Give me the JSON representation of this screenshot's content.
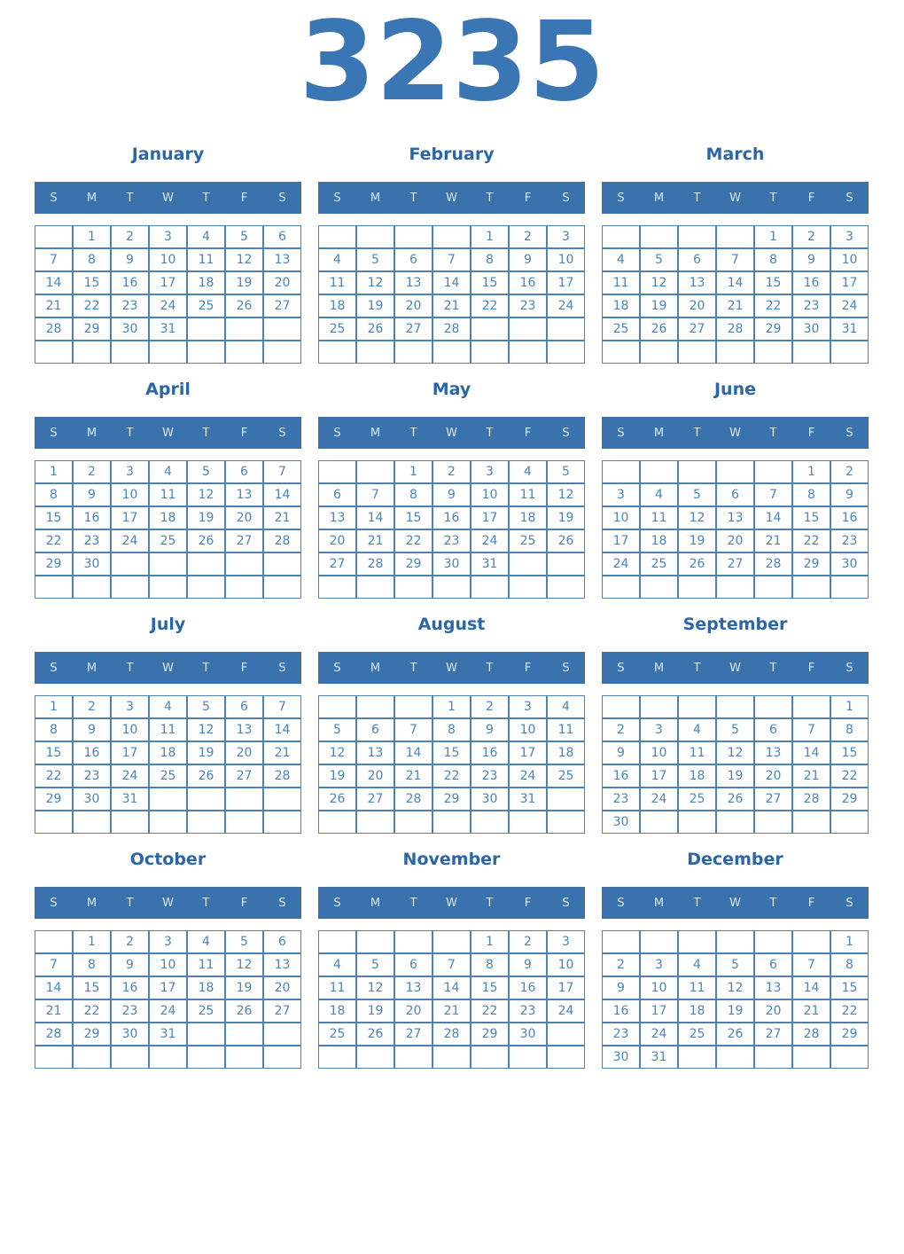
{
  "year": "3235",
  "weekday_headers": [
    "S",
    "M",
    "T",
    "W",
    "T",
    "F",
    "S"
  ],
  "colors": {
    "year_text": "#3b76b4",
    "month_title": "#2b67a8",
    "weekday_bar_bg": "#3a72ad",
    "weekday_bar_text": "#dfe9f4",
    "day_text": "#4d84b8",
    "cell_border": "#4d82b5",
    "background": "#ffffff"
  },
  "months": [
    {
      "name": "January",
      "weeks": [
        [
          "",
          "1",
          "2",
          "3",
          "4",
          "5",
          "6"
        ],
        [
          "7",
          "8",
          "9",
          "10",
          "11",
          "12",
          "13"
        ],
        [
          "14",
          "15",
          "16",
          "17",
          "18",
          "19",
          "20"
        ],
        [
          "21",
          "22",
          "23",
          "24",
          "25",
          "26",
          "27"
        ],
        [
          "28",
          "29",
          "30",
          "31",
          "",
          "",
          ""
        ],
        [
          "",
          "",
          "",
          "",
          "",
          "",
          ""
        ]
      ]
    },
    {
      "name": "February",
      "weeks": [
        [
          "",
          "",
          "",
          "",
          "1",
          "2",
          "3"
        ],
        [
          "4",
          "5",
          "6",
          "7",
          "8",
          "9",
          "10"
        ],
        [
          "11",
          "12",
          "13",
          "14",
          "15",
          "16",
          "17"
        ],
        [
          "18",
          "19",
          "20",
          "21",
          "22",
          "23",
          "24"
        ],
        [
          "25",
          "26",
          "27",
          "28",
          "",
          "",
          ""
        ],
        [
          "",
          "",
          "",
          "",
          "",
          "",
          ""
        ]
      ]
    },
    {
      "name": "March",
      "weeks": [
        [
          "",
          "",
          "",
          "",
          "1",
          "2",
          "3"
        ],
        [
          "4",
          "5",
          "6",
          "7",
          "8",
          "9",
          "10"
        ],
        [
          "11",
          "12",
          "13",
          "14",
          "15",
          "16",
          "17"
        ],
        [
          "18",
          "19",
          "20",
          "21",
          "22",
          "23",
          "24"
        ],
        [
          "25",
          "26",
          "27",
          "28",
          "29",
          "30",
          "31"
        ],
        [
          "",
          "",
          "",
          "",
          "",
          "",
          ""
        ]
      ]
    },
    {
      "name": "April",
      "weeks": [
        [
          "1",
          "2",
          "3",
          "4",
          "5",
          "6",
          "7"
        ],
        [
          "8",
          "9",
          "10",
          "11",
          "12",
          "13",
          "14"
        ],
        [
          "15",
          "16",
          "17",
          "18",
          "19",
          "20",
          "21"
        ],
        [
          "22",
          "23",
          "24",
          "25",
          "26",
          "27",
          "28"
        ],
        [
          "29",
          "30",
          "",
          "",
          "",
          "",
          ""
        ],
        [
          "",
          "",
          "",
          "",
          "",
          "",
          ""
        ]
      ]
    },
    {
      "name": "May",
      "weeks": [
        [
          "",
          "",
          "1",
          "2",
          "3",
          "4",
          "5"
        ],
        [
          "6",
          "7",
          "8",
          "9",
          "10",
          "11",
          "12"
        ],
        [
          "13",
          "14",
          "15",
          "16",
          "17",
          "18",
          "19"
        ],
        [
          "20",
          "21",
          "22",
          "23",
          "24",
          "25",
          "26"
        ],
        [
          "27",
          "28",
          "29",
          "30",
          "31",
          "",
          ""
        ],
        [
          "",
          "",
          "",
          "",
          "",
          "",
          ""
        ]
      ]
    },
    {
      "name": "June",
      "weeks": [
        [
          "",
          "",
          "",
          "",
          "",
          "1",
          "2"
        ],
        [
          "3",
          "4",
          "5",
          "6",
          "7",
          "8",
          "9"
        ],
        [
          "10",
          "11",
          "12",
          "13",
          "14",
          "15",
          "16"
        ],
        [
          "17",
          "18",
          "19",
          "20",
          "21",
          "22",
          "23"
        ],
        [
          "24",
          "25",
          "26",
          "27",
          "28",
          "29",
          "30"
        ],
        [
          "",
          "",
          "",
          "",
          "",
          "",
          ""
        ]
      ]
    },
    {
      "name": "July",
      "weeks": [
        [
          "1",
          "2",
          "3",
          "4",
          "5",
          "6",
          "7"
        ],
        [
          "8",
          "9",
          "10",
          "11",
          "12",
          "13",
          "14"
        ],
        [
          "15",
          "16",
          "17",
          "18",
          "19",
          "20",
          "21"
        ],
        [
          "22",
          "23",
          "24",
          "25",
          "26",
          "27",
          "28"
        ],
        [
          "29",
          "30",
          "31",
          "",
          "",
          "",
          ""
        ],
        [
          "",
          "",
          "",
          "",
          "",
          "",
          ""
        ]
      ]
    },
    {
      "name": "August",
      "weeks": [
        [
          "",
          "",
          "",
          "1",
          "2",
          "3",
          "4"
        ],
        [
          "5",
          "6",
          "7",
          "8",
          "9",
          "10",
          "11"
        ],
        [
          "12",
          "13",
          "14",
          "15",
          "16",
          "17",
          "18"
        ],
        [
          "19",
          "20",
          "21",
          "22",
          "23",
          "24",
          "25"
        ],
        [
          "26",
          "27",
          "28",
          "29",
          "30",
          "31",
          ""
        ],
        [
          "",
          "",
          "",
          "",
          "",
          "",
          ""
        ]
      ]
    },
    {
      "name": "September",
      "weeks": [
        [
          "",
          "",
          "",
          "",
          "",
          "",
          "1"
        ],
        [
          "2",
          "3",
          "4",
          "5",
          "6",
          "7",
          "8"
        ],
        [
          "9",
          "10",
          "11",
          "12",
          "13",
          "14",
          "15"
        ],
        [
          "16",
          "17",
          "18",
          "19",
          "20",
          "21",
          "22"
        ],
        [
          "23",
          "24",
          "25",
          "26",
          "27",
          "28",
          "29"
        ],
        [
          "30",
          "",
          "",
          "",
          "",
          "",
          ""
        ]
      ]
    },
    {
      "name": "October",
      "weeks": [
        [
          "",
          "1",
          "2",
          "3",
          "4",
          "5",
          "6"
        ],
        [
          "7",
          "8",
          "9",
          "10",
          "11",
          "12",
          "13"
        ],
        [
          "14",
          "15",
          "16",
          "17",
          "18",
          "19",
          "20"
        ],
        [
          "21",
          "22",
          "23",
          "24",
          "25",
          "26",
          "27"
        ],
        [
          "28",
          "29",
          "30",
          "31",
          "",
          "",
          ""
        ],
        [
          "",
          "",
          "",
          "",
          "",
          "",
          ""
        ]
      ]
    },
    {
      "name": "November",
      "weeks": [
        [
          "",
          "",
          "",
          "",
          "1",
          "2",
          "3"
        ],
        [
          "4",
          "5",
          "6",
          "7",
          "8",
          "9",
          "10"
        ],
        [
          "11",
          "12",
          "13",
          "14",
          "15",
          "16",
          "17"
        ],
        [
          "18",
          "19",
          "20",
          "21",
          "22",
          "23",
          "24"
        ],
        [
          "25",
          "26",
          "27",
          "28",
          "29",
          "30",
          ""
        ],
        [
          "",
          "",
          "",
          "",
          "",
          "",
          ""
        ]
      ]
    },
    {
      "name": "December",
      "weeks": [
        [
          "",
          "",
          "",
          "",
          "",
          "",
          "1"
        ],
        [
          "2",
          "3",
          "4",
          "5",
          "6",
          "7",
          "8"
        ],
        [
          "9",
          "10",
          "11",
          "12",
          "13",
          "14",
          "15"
        ],
        [
          "16",
          "17",
          "18",
          "19",
          "20",
          "21",
          "22"
        ],
        [
          "23",
          "24",
          "25",
          "26",
          "27",
          "28",
          "29"
        ],
        [
          "30",
          "31",
          "",
          "",
          "",
          "",
          ""
        ]
      ]
    }
  ]
}
